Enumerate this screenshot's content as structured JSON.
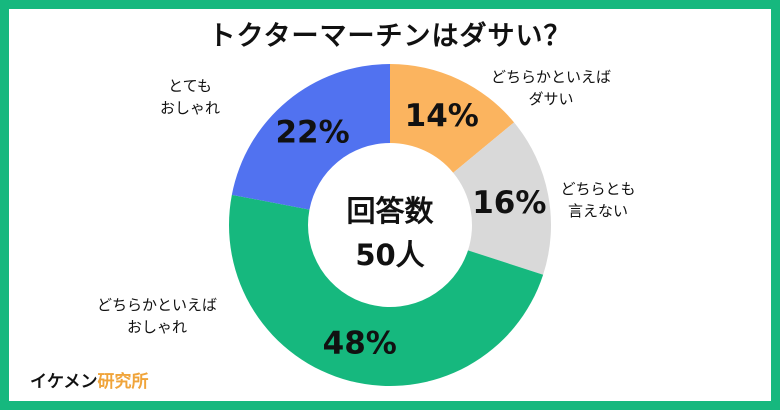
{
  "title": "トクターマーチンはダサい？",
  "center": {
    "line1": "回答数",
    "line2": "50人"
  },
  "brand": {
    "name": "イケメン",
    "accent": "研究所"
  },
  "chart_data": {
    "type": "pie",
    "variant": "donut",
    "total": 50,
    "slices": [
      {
        "label": "どちらかといえば\nダサい",
        "label_lines": [
          "どちらかといえば",
          "ダサい"
        ],
        "value": 14,
        "value_text": "14%",
        "color": "#fbb45f"
      },
      {
        "label": "どちらとも\n言えない",
        "label_lines": [
          "どちらとも",
          "言えない"
        ],
        "value": 16,
        "value_text": "16%",
        "color": "#d9d9d9"
      },
      {
        "label": "どちらかといえば\nおしゃれ",
        "label_lines": [
          "どちらかといえば",
          "おしゃれ"
        ],
        "value": 48,
        "value_text": "48%",
        "color": "#16b87e"
      },
      {
        "label": "とても\nおしゃれ",
        "label_lines": [
          "とても",
          "おしゃれ"
        ],
        "value": 22,
        "value_text": "22%",
        "color": "#5172f0"
      }
    ]
  }
}
